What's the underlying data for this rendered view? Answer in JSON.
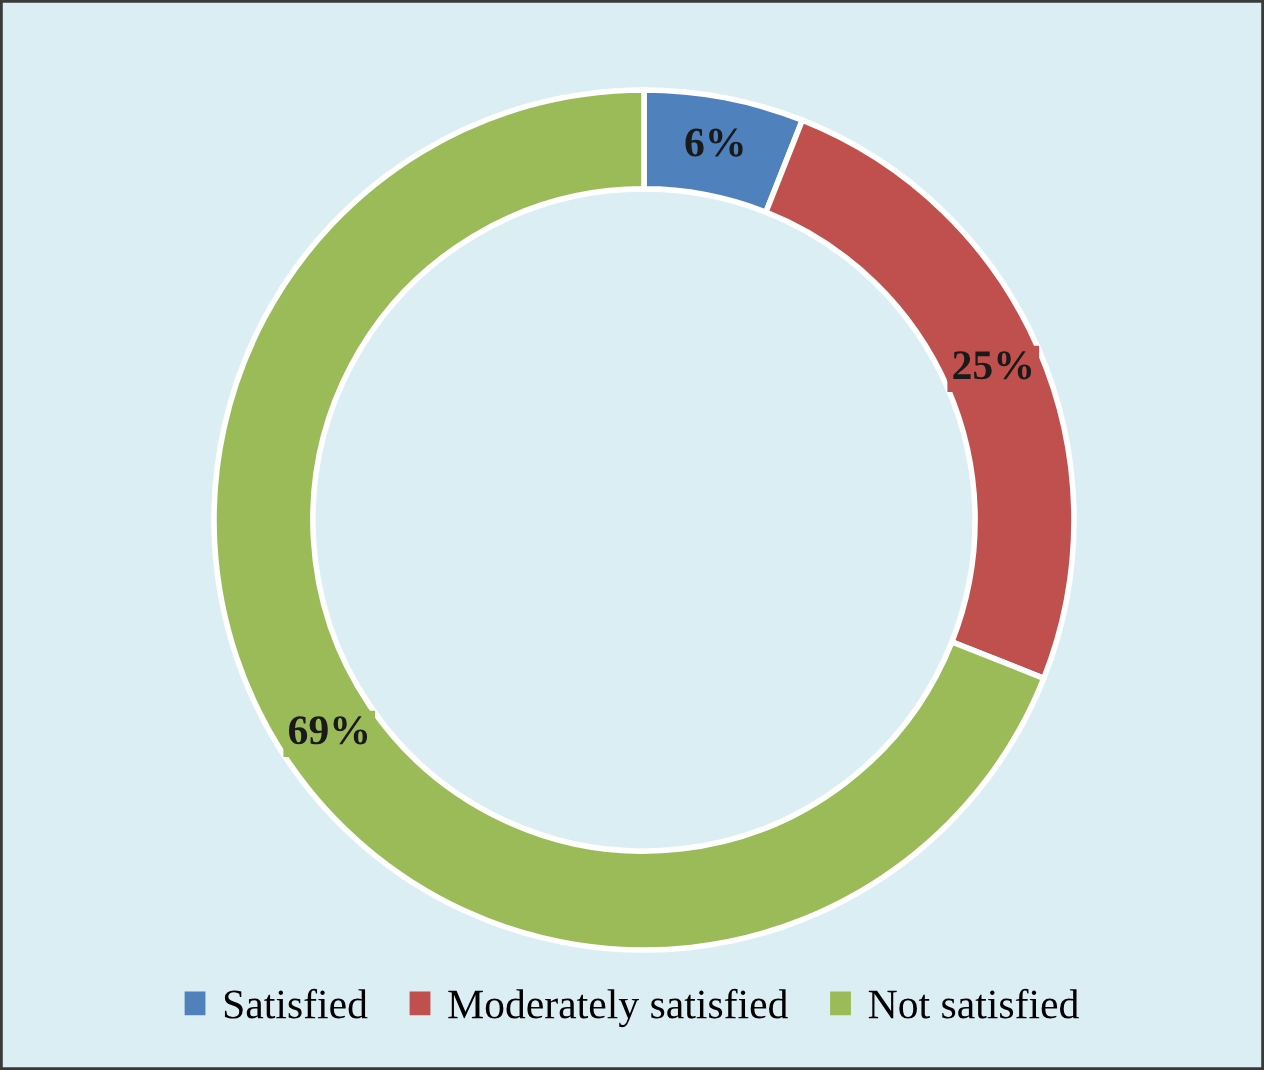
{
  "chart_data": {
    "type": "donut",
    "categories": [
      "Satisfied",
      "Moderately satisfied",
      "Not satisfied"
    ],
    "values": [
      6,
      25,
      69
    ],
    "value_labels": [
      "6%",
      "25%",
      "69%"
    ],
    "colors": [
      "#4f81bd",
      "#c0504d",
      "#9bbb59"
    ],
    "legend": "bottom"
  }
}
